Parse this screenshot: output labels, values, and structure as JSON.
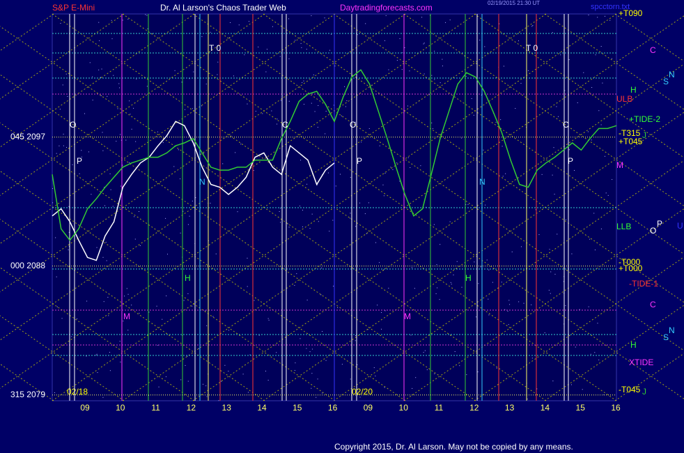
{
  "chart_data": {
    "type": "line",
    "title": "S&P E-Mini",
    "subtitle": "Dr. Al Larson's Chaos Trader Web",
    "site": "Daytradingforecasts.com",
    "timestamp": "02/19/2015 21:30 UT",
    "file": "spcctorn.txt",
    "copyright": "Copyright 2015, Dr. Al Larson. May not be copied by any means.",
    "day_labels": [
      "02/18",
      "02/20"
    ],
    "x_labels": [
      "09",
      "10",
      "11",
      "12",
      "13",
      "14",
      "15",
      "16",
      "09",
      "10",
      "11",
      "12",
      "13",
      "14",
      "15",
      "16"
    ],
    "ylim": [
      2078.6,
      2105.6
    ],
    "yticks": [
      {
        "value": 2097,
        "label": "045  2097"
      },
      {
        "value": 2088,
        "label": "000  2088"
      },
      {
        "value": 2079,
        "label": "315  2079"
      }
    ],
    "series": [
      {
        "color": "#ffffff",
        "values": [
          2091.5,
          2092.0,
          2091.1,
          2089.8,
          2088.6,
          2088.4,
          2090.1,
          2091.1,
          2093.5,
          2094.4,
          2095.2,
          2095.6,
          2096.4,
          2097.1,
          2098.1,
          2097.8,
          2096.6,
          2094.9,
          2093.7,
          2093.5,
          2093.0,
          2093.5,
          2094.2,
          2095.6,
          2095.9,
          2094.9,
          2094.4,
          2096.4,
          2095.9,
          2095.4,
          2093.7,
          2094.7,
          2095.2,
          null,
          null,
          null,
          null,
          null,
          null,
          null,
          null,
          null,
          null,
          null,
          null,
          null,
          null,
          null,
          null,
          null,
          null,
          null,
          null,
          null,
          null,
          null,
          null,
          null,
          null,
          null,
          null,
          null,
          null,
          null,
          null
        ]
      },
      {
        "color": "#33cc33",
        "values": [
          2094.4,
          2090.6,
          2089.8,
          2090.6,
          2092.0,
          2092.7,
          2093.5,
          2094.2,
          2094.9,
          2095.2,
          2095.4,
          2095.6,
          2095.6,
          2095.9,
          2096.4,
          2096.6,
          2096.9,
          2095.9,
          2094.9,
          2094.7,
          2094.7,
          2094.9,
          2094.9,
          2095.4,
          2095.4,
          2095.4,
          2096.9,
          2098.1,
          2099.5,
          2100.0,
          2100.2,
          2099.3,
          2098.1,
          2099.8,
          2101.2,
          2101.7,
          2100.7,
          2098.8,
          2096.9,
          2094.9,
          2093.0,
          2091.5,
          2092.0,
          2094.4,
          2096.9,
          2098.8,
          2100.7,
          2101.5,
          2101.2,
          2100.2,
          2098.8,
          2097.3,
          2095.4,
          2093.7,
          2093.5,
          2094.7,
          2095.2,
          2095.6,
          2096.1,
          2096.6,
          2096.1,
          2096.9,
          2097.6,
          2097.6,
          2097.8
        ]
      }
    ],
    "annotations": [
      {
        "text": "+T090",
        "color": "#ffff00"
      },
      {
        "text": "C",
        "color": "#ff33ff"
      },
      {
        "text": "N",
        "color": "#33ccff"
      },
      {
        "text": "S",
        "color": "#33ccff"
      },
      {
        "text": "H",
        "color": "#33ff33"
      },
      {
        "text": "ULB",
        "color": "#ff3333"
      },
      {
        "text": "+TIDE-2",
        "color": "#33ff33"
      },
      {
        "text": "-T315",
        "color": "#ffff00"
      },
      {
        "text": "J",
        "color": "#33cc33"
      },
      {
        "text": "+T045",
        "color": "#ffff00"
      },
      {
        "text": "M",
        "color": "#ff33ff"
      },
      {
        "text": "LLB",
        "color": "#33ff33"
      },
      {
        "text": "O",
        "color": "#ffffff"
      },
      {
        "text": "P",
        "color": "#ffffff"
      },
      {
        "text": "U",
        "color": "#3333ff"
      },
      {
        "text": "-T000",
        "color": "#ffff00"
      },
      {
        "text": "+T000",
        "color": "#ffff00"
      },
      {
        "text": "-TIDE-1",
        "color": "#ff3333"
      },
      {
        "text": "C",
        "color": "#ff33ff"
      },
      {
        "text": "N",
        "color": "#33ccff"
      },
      {
        "text": "S",
        "color": "#33ccff"
      },
      {
        "text": "H",
        "color": "#33ff33"
      },
      {
        "text": "XTIDE",
        "color": "#ff33ff"
      },
      {
        "text": "-T045",
        "color": "#ffff00"
      },
      {
        "text": "J",
        "color": "#33cc33"
      }
    ],
    "chart_letters": [
      {
        "text": "T 0",
        "color": "#ffffff"
      },
      {
        "text": "T 0",
        "color": "#ffffff"
      },
      {
        "text": "O",
        "color": "#ffffff"
      },
      {
        "text": "P",
        "color": "#ffffff"
      },
      {
        "text": "C",
        "color": "#ffffff"
      },
      {
        "text": "O",
        "color": "#ffffff"
      },
      {
        "text": "P",
        "color": "#ffffff"
      },
      {
        "text": "C",
        "color": "#ffffff"
      },
      {
        "text": "P",
        "color": "#ffffff"
      },
      {
        "text": "M",
        "color": "#ff33ff"
      },
      {
        "text": "M",
        "color": "#ff33ff"
      },
      {
        "text": "H",
        "color": "#33ff33"
      },
      {
        "text": "H",
        "color": "#33ff33"
      },
      {
        "text": "N",
        "color": "#33ccff"
      },
      {
        "text": "N",
        "color": "#33ccff"
      }
    ]
  }
}
